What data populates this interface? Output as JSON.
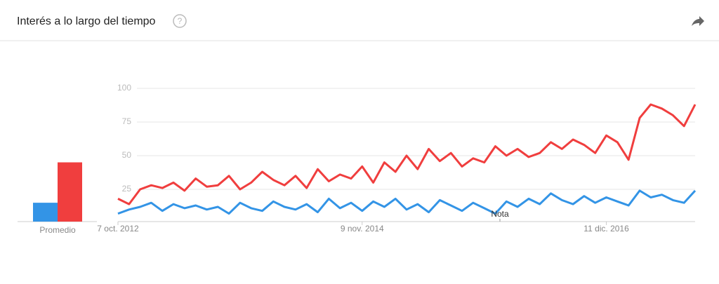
{
  "header": {
    "title": "Interés a lo largo del tiempo"
  },
  "chart_data": [
    {
      "type": "bar",
      "categories": [
        "Promedio"
      ],
      "ylim": [
        0,
        100
      ],
      "series": [
        {
          "color": "#3394e6",
          "values": [
            14
          ]
        },
        {
          "color": "#f03e3e",
          "values": [
            44
          ]
        }
      ]
    },
    {
      "type": "line",
      "ylim": [
        0,
        100
      ],
      "yticks": [
        25,
        50,
        75,
        100
      ],
      "grid": true,
      "annotation": "Nota",
      "categories": [
        "7 oct. 2012",
        null,
        null,
        null,
        null,
        null,
        null,
        null,
        null,
        null,
        null,
        null,
        null,
        null,
        null,
        null,
        null,
        null,
        null,
        null,
        null,
        null,
        "9 nov. 2014",
        null,
        null,
        null,
        null,
        null,
        null,
        null,
        null,
        null,
        null,
        null,
        null,
        null,
        null,
        null,
        null,
        null,
        null,
        null,
        null,
        null,
        "11 dic. 2016",
        null,
        null,
        null,
        null,
        null,
        null,
        null,
        null
      ],
      "series": [
        {
          "color": "#3394e6",
          "values": [
            7,
            10,
            12,
            15,
            9,
            14,
            11,
            13,
            10,
            12,
            7,
            15,
            11,
            9,
            16,
            12,
            10,
            14,
            8,
            18,
            11,
            15,
            9,
            16,
            12,
            18,
            10,
            14,
            8,
            17,
            13,
            9,
            15,
            11,
            7,
            16,
            12,
            18,
            14,
            22,
            17,
            14,
            20,
            15,
            19,
            16,
            13,
            24,
            19,
            21,
            17,
            15,
            24
          ]
        },
        {
          "color": "#f03e3e",
          "values": [
            18,
            14,
            25,
            28,
            26,
            30,
            24,
            33,
            27,
            28,
            35,
            25,
            30,
            38,
            32,
            28,
            35,
            26,
            40,
            31,
            36,
            33,
            42,
            30,
            45,
            38,
            50,
            40,
            55,
            46,
            52,
            42,
            48,
            45,
            57,
            50,
            55,
            49,
            52,
            60,
            55,
            62,
            58,
            52,
            65,
            60,
            47,
            78,
            88,
            85,
            80,
            72,
            88
          ]
        }
      ]
    }
  ]
}
